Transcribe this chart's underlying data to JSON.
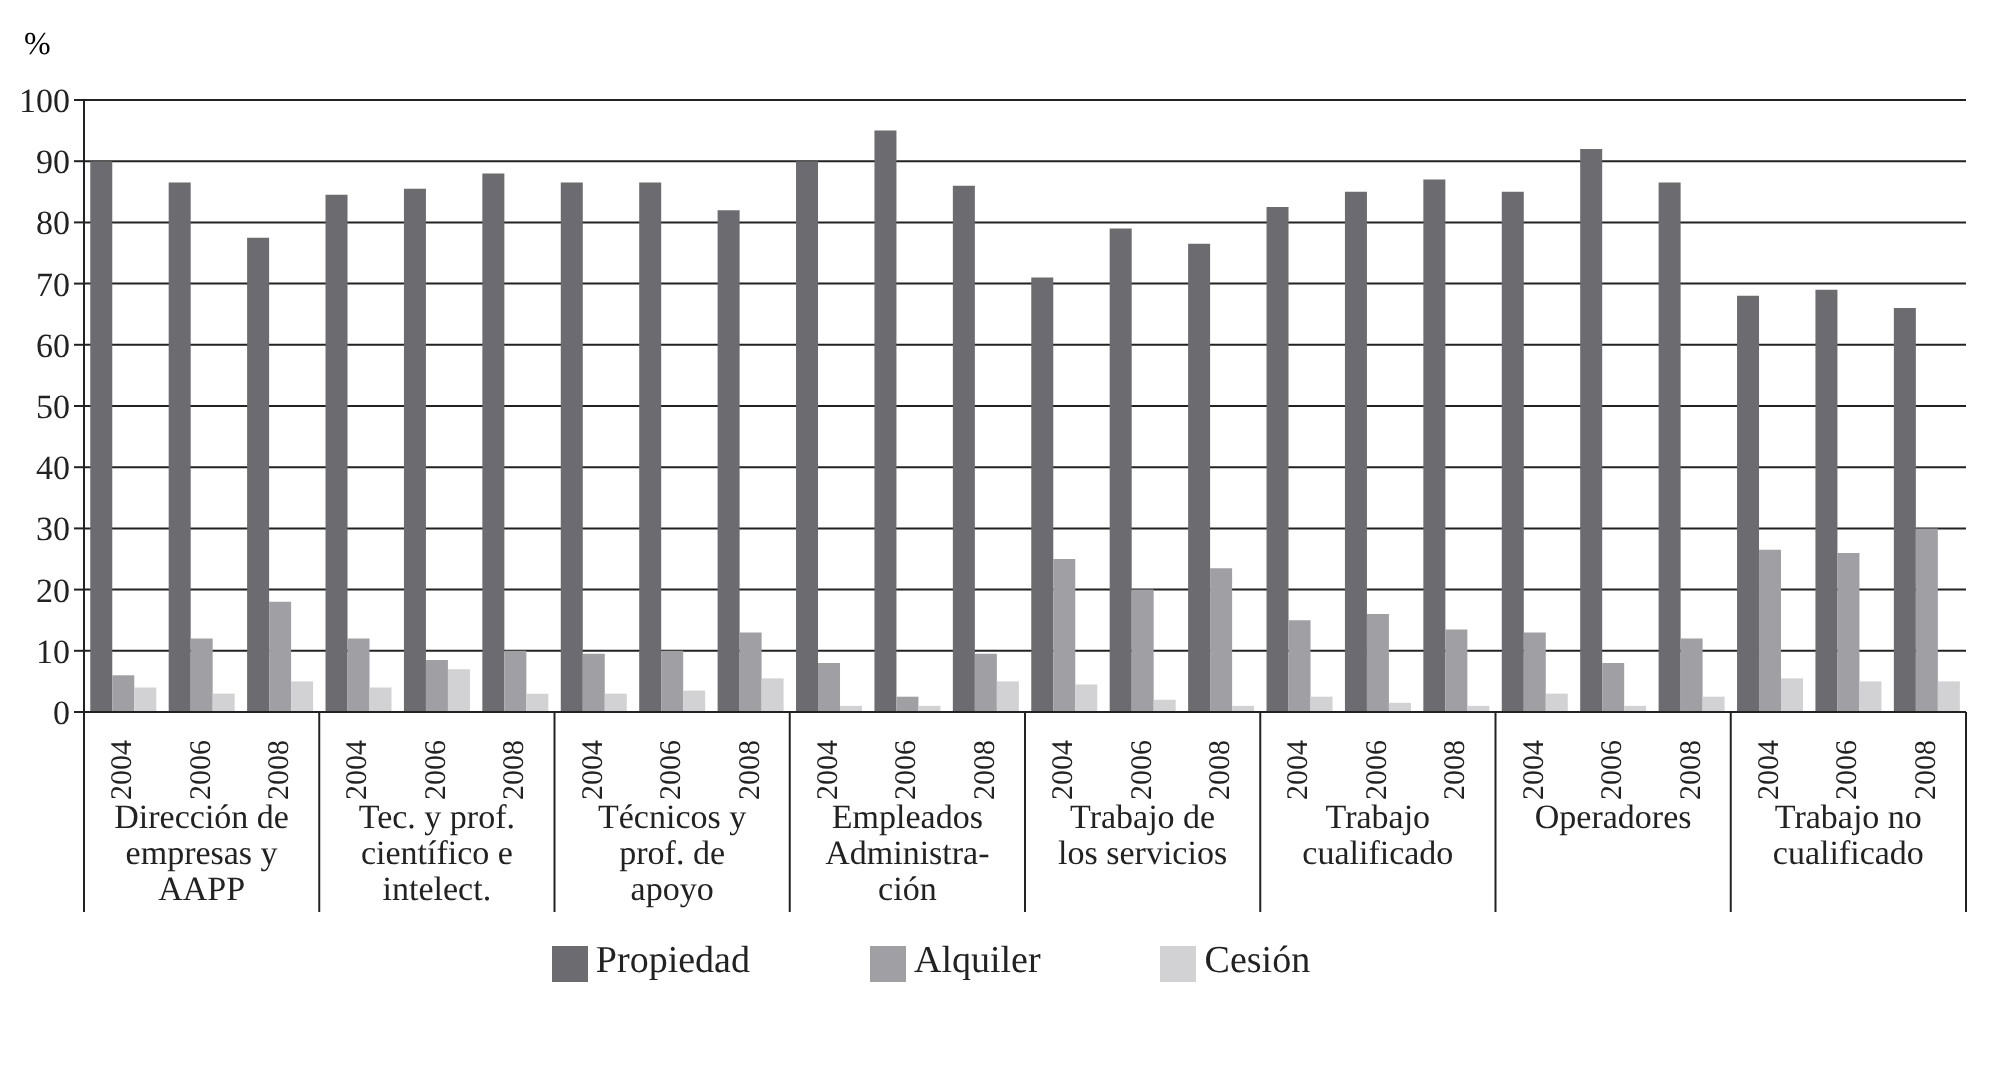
{
  "chart_data": {
    "type": "bar",
    "ylabel": "%",
    "categories": [
      "2004",
      "2006",
      "2008",
      "2004",
      "2006",
      "2008",
      "2004",
      "2006",
      "2008",
      "2004",
      "2006",
      "2008",
      "2004",
      "2006",
      "2008",
      "2004",
      "2006",
      "2008",
      "2004",
      "2006",
      "2008",
      "2004",
      "2006",
      "2008"
    ],
    "series": [
      {
        "name": "Propiedad",
        "color": "#6b6b70",
        "values": [
          90,
          86.5,
          77.5,
          84.5,
          85.5,
          88,
          86.5,
          86.5,
          82,
          90,
          95,
          86,
          71,
          79,
          76.5,
          82.5,
          85,
          87,
          85,
          92,
          86.5,
          68,
          69,
          66
        ]
      },
      {
        "name": "Alquiler",
        "color": "#a0a0a4",
        "values": [
          6,
          12,
          18,
          12,
          8.5,
          10,
          9.5,
          10,
          13,
          8,
          2.5,
          9.5,
          25,
          20,
          23.5,
          15,
          16,
          13.5,
          13,
          8,
          12,
          26.5,
          26,
          30
        ]
      },
      {
        "name": "Cesión",
        "color": "#d2d2d4",
        "values": [
          4,
          3,
          5,
          4,
          7,
          3,
          3,
          3.5,
          5.5,
          1,
          1,
          5,
          4.5,
          2,
          1,
          2.5,
          1.5,
          1,
          3,
          1,
          2.5,
          5.5,
          5,
          5
        ]
      }
    ],
    "annotations": [
      "Dirección de\nempresas y\nAAPP",
      "Tec. y prof.\ncientífico e\nintelect.",
      "Técnicos y\nprof. de\napoyo",
      "Empleados\nAdministra-\nción",
      "Trabajo de\nlos servicios",
      "Trabajo\ncualificado",
      "Operadores",
      "Trabajo no\ncualificado"
    ],
    "ylim": [
      0,
      100
    ],
    "yticks": [
      0,
      10,
      20,
      30,
      40,
      50,
      60,
      70,
      80,
      90,
      100
    ],
    "grid": "y",
    "legend": "bottom"
  }
}
